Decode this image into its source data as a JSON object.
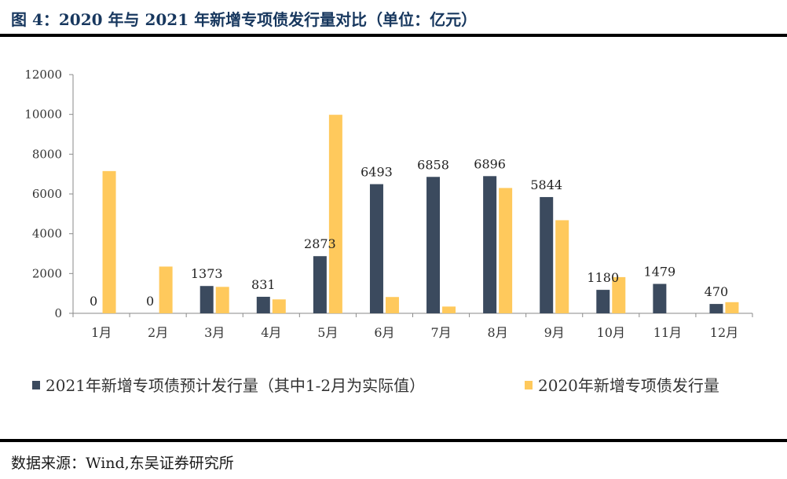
{
  "header": {
    "title": "图 4：2020 年与 2021 年新增专项债发行量对比（单位：亿元）"
  },
  "footer": {
    "source": "数据来源：Wind,东吴证券研究所"
  },
  "chart_data": {
    "type": "bar",
    "categories": [
      "1月",
      "2月",
      "3月",
      "4月",
      "5月",
      "6月",
      "7月",
      "8月",
      "9月",
      "10月",
      "11月",
      "12月"
    ],
    "series": [
      {
        "name": "2021年新增专项债预计发行量（其中1-2月为实际值）",
        "color": "#3b4a5e",
        "values": [
          0,
          0,
          1373,
          831,
          2873,
          6493,
          6858,
          6896,
          5844,
          1180,
          1479,
          470
        ],
        "data_labels": [
          "0",
          "0",
          "1373",
          "831",
          "2873",
          "6493",
          "6858",
          "6896",
          "5844",
          "1180",
          "1479",
          "470"
        ]
      },
      {
        "name": "2020年新增专项债发行量",
        "color": "#ffc95c",
        "values": [
          7150,
          2350,
          1330,
          700,
          9980,
          820,
          340,
          6300,
          4680,
          1820,
          0,
          560
        ]
      }
    ],
    "y_ticks": [
      "0",
      "2000",
      "4000",
      "6000",
      "8000",
      "10000",
      "12000"
    ],
    "ylim": [
      0,
      12000
    ],
    "grid": false,
    "legend_position": "bottom"
  }
}
